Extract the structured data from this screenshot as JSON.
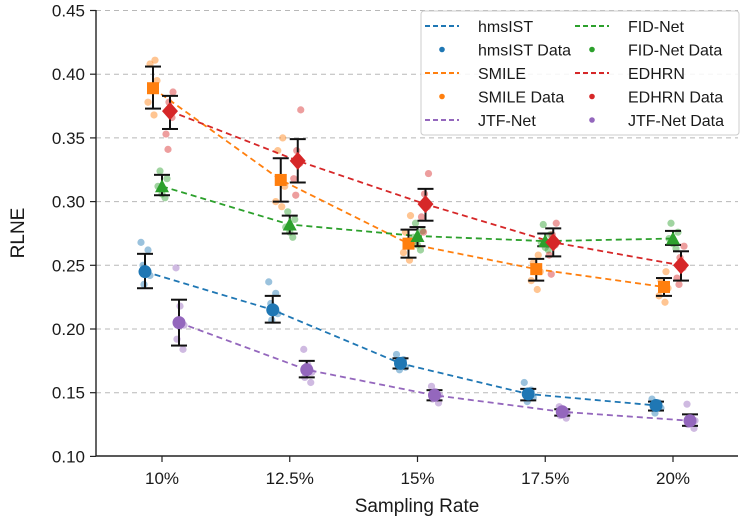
{
  "chart_data": {
    "type": "line",
    "title": "",
    "xlabel": "Sampling Rate",
    "ylabel": "RLNE",
    "x": [
      10,
      12.5,
      15,
      17.5,
      20
    ],
    "x_tick_labels": [
      "10%",
      "12.5%",
      "15%",
      "17.5%",
      "20%"
    ],
    "ylim": [
      0.1,
      0.45
    ],
    "y_ticks": [
      0.1,
      0.15,
      0.2,
      0.25,
      0.3,
      0.35,
      0.4,
      0.45
    ],
    "y_tick_labels": [
      "0.10",
      "0.15",
      "0.20",
      "0.25",
      "0.30",
      "0.35",
      "0.40",
      "0.45"
    ],
    "grid": "horizontal dashed",
    "legend_position": "top-right",
    "legend_columns": 2,
    "series": [
      {
        "name": "hmsIST",
        "data_label": "hmsIST Data",
        "color": "#1f77b4",
        "marker": "circle",
        "mean": [
          0.245,
          0.215,
          0.173,
          0.149,
          0.14
        ],
        "err_low": [
          0.232,
          0.205,
          0.169,
          0.144,
          0.136
        ],
        "err_high": [
          0.259,
          0.226,
          0.177,
          0.153,
          0.143
        ],
        "raw": [
          [
            0.268,
            0.262,
            0.25,
            0.242,
            0.235
          ],
          [
            0.237,
            0.228,
            0.22,
            0.212,
            0.207
          ],
          [
            0.18,
            0.176,
            0.172,
            0.17,
            0.168
          ],
          [
            0.158,
            0.152,
            0.148,
            0.146,
            0.143
          ],
          [
            0.145,
            0.142,
            0.14,
            0.138,
            0.134
          ]
        ]
      },
      {
        "name": "SMILE",
        "data_label": "SMILE Data",
        "color": "#ff7f0e",
        "marker": "square",
        "mean": [
          0.389,
          0.317,
          0.267,
          0.247,
          0.233
        ],
        "err_low": [
          0.373,
          0.3,
          0.256,
          0.238,
          0.226
        ],
        "err_high": [
          0.406,
          0.334,
          0.278,
          0.255,
          0.24
        ],
        "raw": [
          [
            0.411,
            0.408,
            0.395,
            0.378,
            0.368
          ],
          [
            0.35,
            0.34,
            0.312,
            0.3,
            0.296
          ],
          [
            0.289,
            0.276,
            0.268,
            0.26,
            0.254
          ],
          [
            0.258,
            0.252,
            0.245,
            0.238,
            0.231
          ],
          [
            0.245,
            0.238,
            0.232,
            0.226,
            0.221
          ]
        ]
      },
      {
        "name": "FID-Net",
        "data_label": "FID-Net Data",
        "color": "#2ca02c",
        "marker": "triangle",
        "mean": [
          0.312,
          0.282,
          0.273,
          0.269,
          0.271
        ],
        "err_low": [
          0.305,
          0.275,
          0.265,
          0.265,
          0.266
        ],
        "err_high": [
          0.321,
          0.289,
          0.28,
          0.275,
          0.277
        ],
        "raw": [
          [
            0.324,
            0.318,
            0.312,
            0.306,
            0.303
          ],
          [
            0.292,
            0.286,
            0.28,
            0.276,
            0.272
          ],
          [
            0.283,
            0.277,
            0.272,
            0.266,
            0.262
          ],
          [
            0.282,
            0.274,
            0.268,
            0.264,
            0.262
          ],
          [
            0.283,
            0.276,
            0.271,
            0.267,
            0.263
          ]
        ]
      },
      {
        "name": "EDHRN",
        "data_label": "EDHRN Data",
        "color": "#d62728",
        "marker": "diamond",
        "mean": [
          0.371,
          0.332,
          0.298,
          0.268,
          0.25
        ],
        "err_low": [
          0.357,
          0.315,
          0.285,
          0.257,
          0.238
        ],
        "err_high": [
          0.383,
          0.349,
          0.31,
          0.279,
          0.261
        ],
        "raw": [
          [
            0.386,
            0.378,
            0.366,
            0.353,
            0.341
          ],
          [
            0.372,
            0.34,
            0.33,
            0.318,
            0.305
          ],
          [
            0.322,
            0.306,
            0.296,
            0.288,
            0.276
          ],
          [
            0.283,
            0.274,
            0.266,
            0.258,
            0.243
          ],
          [
            0.265,
            0.256,
            0.248,
            0.24,
            0.235
          ]
        ]
      },
      {
        "name": "JTF-Net",
        "data_label": "JTF-Net Data",
        "color": "#9467bd",
        "marker": "circle",
        "mean": [
          0.205,
          0.168,
          0.148,
          0.135,
          0.128
        ],
        "err_low": [
          0.187,
          0.162,
          0.144,
          0.132,
          0.124
        ],
        "err_high": [
          0.223,
          0.175,
          0.152,
          0.137,
          0.133
        ],
        "raw": [
          [
            0.248,
            0.218,
            0.203,
            0.192,
            0.184
          ],
          [
            0.184,
            0.172,
            0.166,
            0.162,
            0.158
          ],
          [
            0.155,
            0.151,
            0.148,
            0.145,
            0.142
          ],
          [
            0.139,
            0.136,
            0.134,
            0.132,
            0.13
          ],
          [
            0.141,
            0.131,
            0.128,
            0.125,
            0.122
          ]
        ]
      }
    ]
  }
}
